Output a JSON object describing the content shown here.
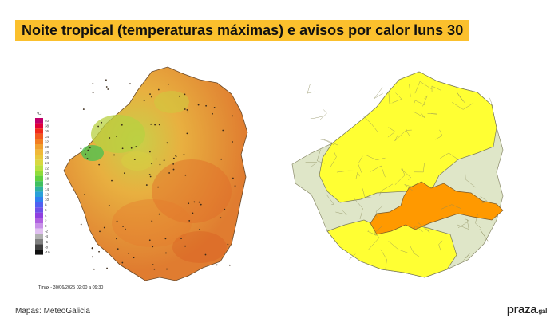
{
  "header": {
    "title": "Noite tropical (temperaturas máximas) e avisos por calor luns 30"
  },
  "left_map": {
    "legend_unit": "ºC",
    "legend_values": [
      "40",
      "38",
      "36",
      "34",
      "32",
      "30",
      "28",
      "26",
      "24",
      "22",
      "20",
      "18",
      "16",
      "14",
      "12",
      "10",
      "8",
      "6",
      "4",
      "2",
      "0",
      "-2",
      "-4",
      "-6",
      "-8",
      "-10"
    ],
    "legend_colors": [
      "#c0006a",
      "#e0003a",
      "#f02a1a",
      "#f25a1e",
      "#f27d22",
      "#f0a030",
      "#f0b838",
      "#e8c83c",
      "#d8d840",
      "#b8e040",
      "#90dc3a",
      "#60d040",
      "#40c060",
      "#30b0a0",
      "#2aa0d8",
      "#3080f0",
      "#5060f0",
      "#7050e8",
      "#9040e0",
      "#b060e0",
      "#c890e8",
      "#e0c0f0",
      "#b0b0b0",
      "#808080",
      "#404040",
      "#101010"
    ],
    "caption": "Tmax - 30/06/2025 02:00 a 09:30",
    "base_color": "#f2a040"
  },
  "right_map": {
    "colors": {
      "yellow": "#ffff33",
      "orange": "#ff9900",
      "none": "#dfe6c8",
      "border": "#7a7a5a"
    }
  },
  "footer": {
    "credit": "Mapas: MeteoGalicia",
    "brand": "praza",
    "brand_tld": ".gal"
  }
}
